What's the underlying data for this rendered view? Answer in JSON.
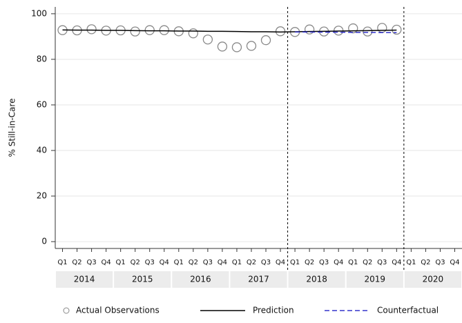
{
  "chart_data": {
    "type": "scatter-line",
    "ylabel": "% Still-in-Care",
    "categories": [
      "Q1",
      "Q2",
      "Q3",
      "Q4",
      "Q1",
      "Q2",
      "Q3",
      "Q4",
      "Q1",
      "Q2",
      "Q3",
      "Q4",
      "Q1",
      "Q2",
      "Q3",
      "Q4",
      "Q1",
      "Q2",
      "Q3",
      "Q4",
      "Q1",
      "Q2",
      "Q3",
      "Q4",
      "Q1",
      "Q2",
      "Q3",
      "Q4"
    ],
    "years": [
      "2014",
      "2015",
      "2016",
      "2017",
      "2018",
      "2019",
      "2020"
    ],
    "series": [
      {
        "name": "Actual Observations",
        "style": "circle",
        "color": "#888888",
        "values": [
          92.8,
          92.7,
          93.2,
          92.6,
          92.7,
          92.2,
          92.8,
          92.8,
          92.3,
          91.4,
          88.7,
          85.6,
          85.3,
          85.9,
          88.4,
          92.3,
          92.0,
          93.1,
          92.2,
          92.6,
          93.6,
          92.2,
          93.8,
          93.0,
          null,
          null,
          null,
          null
        ]
      },
      {
        "name": "Prediction",
        "style": "solid",
        "color": "#000000",
        "values": [
          92.9,
          92.8,
          92.8,
          92.7,
          92.7,
          92.6,
          92.5,
          92.5,
          92.4,
          92.4,
          92.3,
          92.3,
          92.2,
          92.1,
          92.1,
          92.0,
          92.1,
          92.2,
          92.3,
          92.4,
          92.5,
          92.6,
          92.7,
          92.8,
          null,
          null,
          null,
          null
        ]
      },
      {
        "name": "Counterfactual",
        "style": "dashed",
        "color": "#3333cc",
        "values": [
          null,
          null,
          null,
          null,
          null,
          null,
          null,
          null,
          null,
          null,
          null,
          null,
          null,
          null,
          null,
          null,
          92.0,
          92.0,
          91.9,
          91.9,
          91.8,
          91.8,
          91.7,
          91.7,
          null,
          null,
          null,
          null
        ]
      }
    ],
    "ylim": [
      -3,
      103
    ],
    "yticks": [
      0,
      20,
      40,
      60,
      80,
      100
    ],
    "grid": true
  }
}
